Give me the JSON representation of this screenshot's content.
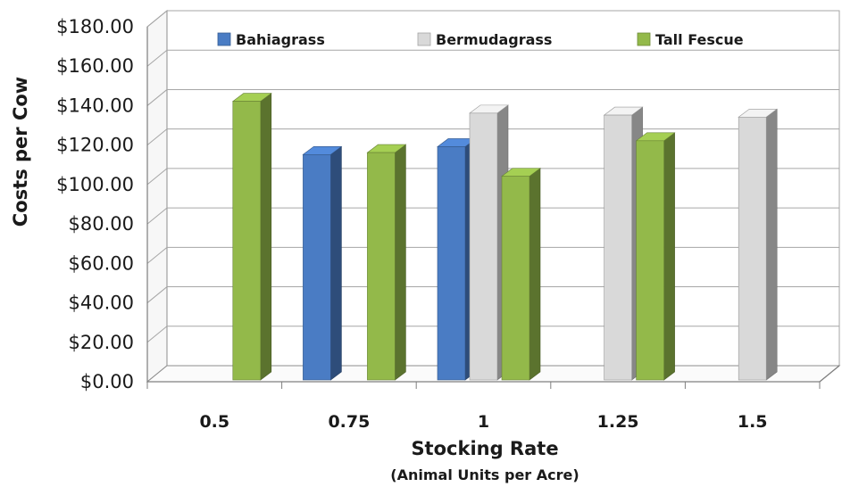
{
  "chart_data": {
    "type": "bar",
    "style": "3d-clustered-column",
    "title": "",
    "xlabel": "Stocking Rate",
    "xlabel_sub": "(Animal Units per Acre)",
    "ylabel": "Costs per Cow",
    "categories": [
      "0.5",
      "0.75",
      "1",
      "1.25",
      "1.5"
    ],
    "ylim": [
      0,
      180
    ],
    "yticks": [
      "$0.00",
      "$20.00",
      "$40.00",
      "$60.00",
      "$80.00",
      "$100.00",
      "$120.00",
      "$140.00",
      "$160.00",
      "$180.00"
    ],
    "grid": true,
    "legend_position": "top",
    "series": [
      {
        "name": "Bahiagrass",
        "color": "#4a7cc4",
        "values": [
          null,
          117,
          121,
          null,
          null
        ]
      },
      {
        "name": "Bermudagrass",
        "color": "#d9d9d9",
        "values": [
          null,
          null,
          138,
          137,
          136
        ]
      },
      {
        "name": "Tall Fescue",
        "color": "#93b94a",
        "values": [
          144,
          118,
          106,
          124,
          null
        ]
      }
    ]
  }
}
